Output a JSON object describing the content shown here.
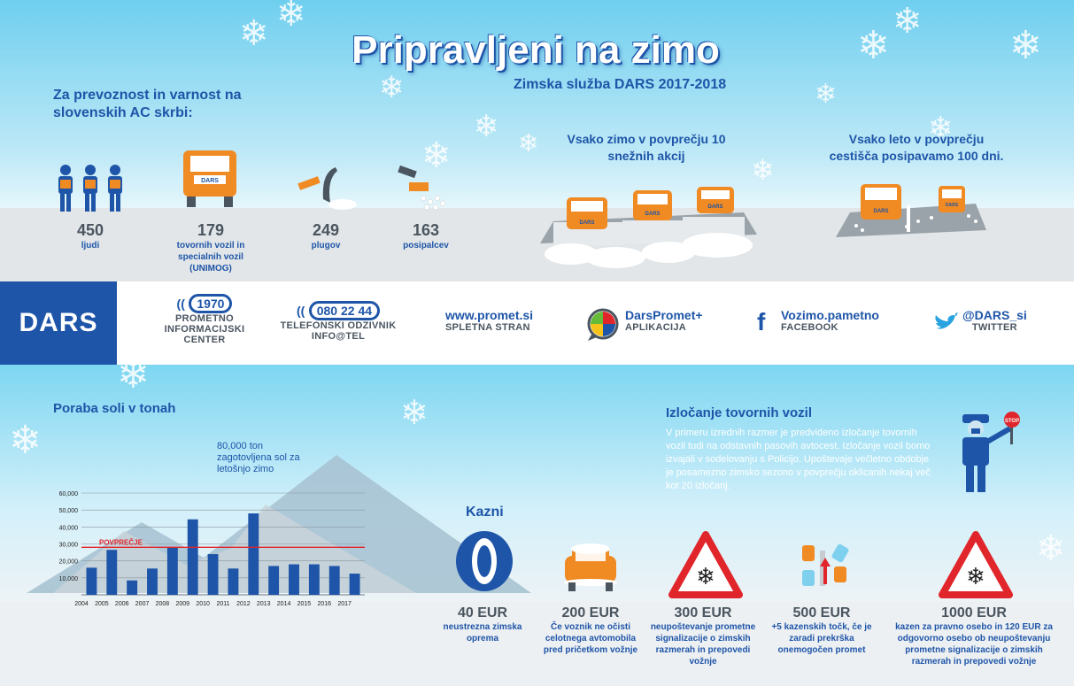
{
  "header": {
    "title": "Pripravljeni na zimo",
    "subtitle": "Zimska služba DARS 2017-2018",
    "intro": "Za prevoznost in varnost na slovenskih AC skrbi:"
  },
  "stats": [
    {
      "num": "450",
      "label": "ljudi"
    },
    {
      "num": "179",
      "label": "tovornih vozil in specialnih vozil (UNIMOG)"
    },
    {
      "num": "249",
      "label": "plugov"
    },
    {
      "num": "163",
      "label": "posipalcev"
    }
  ],
  "averages": {
    "winter": "Vsako zimo v povprečju 10 snežnih akcij",
    "summer": "Vsako leto v povprečju cestišča posipavamo 100 dni.",
    "truck_label": "DARS"
  },
  "contacts": {
    "logo": "DARS",
    "items": [
      {
        "main": "1970",
        "sub1": "PROMETNO",
        "sub2": "INFORMACIJSKI",
        "sub3": "CENTER"
      },
      {
        "main": "080 22 44",
        "sub1": "TELEFONSKI ODZIVNIK",
        "sub2": "INFO@TEL"
      },
      {
        "main": "www.promet.si",
        "sub1": "SPLETNA STRAN"
      },
      {
        "main": "DarsPromet+",
        "sub1": "APLIKACIJA"
      },
      {
        "main": "Vozimo.pametno",
        "sub1": "FACEBOOK"
      },
      {
        "main": "@DARS_si",
        "sub1": "TWITTER"
      }
    ]
  },
  "salt": {
    "title": "Poraba soli v tonah",
    "note": "80,000 ton zagotovljena sol za letošnjo zimo",
    "avg_label": "POVPREČJE"
  },
  "chart_data": {
    "type": "bar",
    "title": "Poraba soli v tonah",
    "categories": [
      "2004",
      "2005",
      "2006",
      "2007",
      "2008",
      "2009",
      "2010",
      "2011",
      "2012",
      "2013",
      "2014",
      "2015",
      "2016",
      "2017"
    ],
    "values": [
      16000,
      26500,
      8500,
      15500,
      28000,
      44500,
      24000,
      15500,
      48000,
      17000,
      18000,
      18000,
      17000,
      12500
    ],
    "average": 28000,
    "ylim": [
      0,
      60000
    ],
    "yticks": [
      "10,000",
      "20,000",
      "30,000",
      "40,000",
      "50,000",
      "60,000"
    ],
    "ytick_values": [
      10000,
      20000,
      30000,
      40000,
      50000,
      60000
    ],
    "bar_color": "#1e55a8",
    "average_color": "#e0252b"
  },
  "exclusion": {
    "title": "Izločanje tovornih vozil",
    "text": "V primeru izrednih razmer je predvideno izločanje tovornih vozil tudi na odstavnih pasovih avtocest. Izločanje vozil bomo izvajali v sodelovanju s Policijo. Upoštevaje večletno obdobje je posamezno zimsko sezono v povprečju oklicanih nekaj več kot 20 izločanj.",
    "stop_label": "STOP"
  },
  "fines": {
    "title": "Kazni",
    "items": [
      {
        "amount": "40 EUR",
        "label": "neustrezna zimska oprema"
      },
      {
        "amount": "200 EUR",
        "label": "Če voznik ne očisti celotnega avtomobila pred pričetkom vožnje"
      },
      {
        "amount": "300 EUR",
        "label": "neupoštevanje prometne signalizacije o zimskih razmerah in prepovedi vožnje"
      },
      {
        "amount": "500 EUR",
        "label": "+5 kazenskih točk, če je zaradi prekrška onemogočen promet"
      },
      {
        "amount": "1000 EUR",
        "label": "kazen za pravno osebo in 120 EUR za odgovorno osebo ob neupoštevanju prometne signalizacije o zimskih razmerah in prepovedi vožnje"
      }
    ]
  }
}
